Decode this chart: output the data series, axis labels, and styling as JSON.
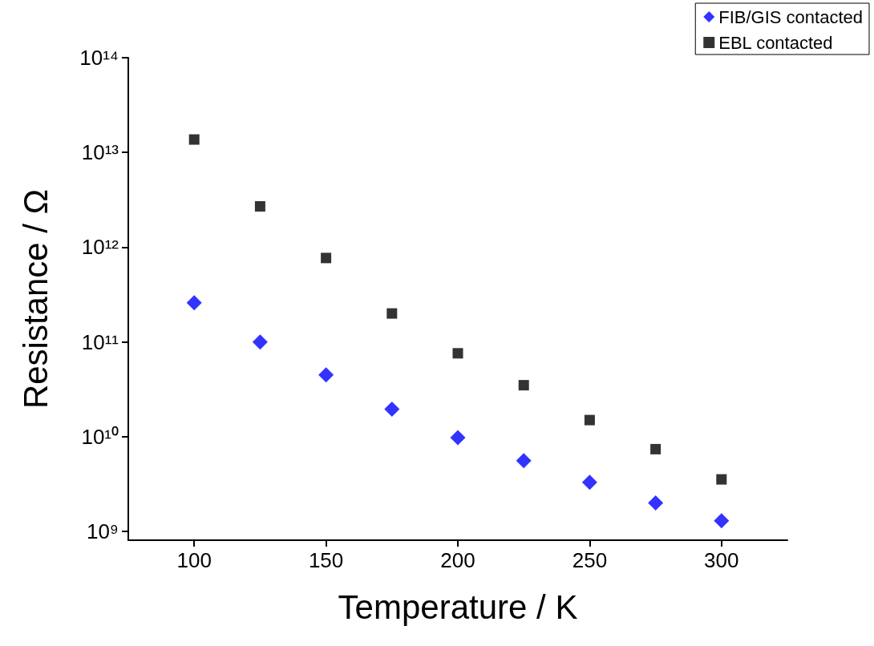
{
  "chart_data": {
    "type": "scatter",
    "xlabel": "Temperature / K",
    "ylabel": "Resistance / Ω",
    "x": [
      100,
      125,
      150,
      175,
      200,
      225,
      250,
      275,
      300
    ],
    "series": [
      {
        "name": "FIB/GIS contacted",
        "color": "#0000ff",
        "marker": "diamond",
        "values": [
          260000000000.0,
          100000000000.0,
          45000000000.0,
          19600000000.0,
          9800000000.0,
          5600000000.0,
          3300000000.0,
          2000000000.0,
          1300000000.0
        ]
      },
      {
        "name": "EBL contacted",
        "color": "#000000",
        "marker": "square",
        "values": [
          13700000000000.0,
          2700000000000.0,
          770000000000.0,
          200000000000.0,
          76000000000.0,
          35000000000.0,
          15000000000.0,
          7400000000.0,
          3550000000.0
        ]
      }
    ],
    "xlim": [
      75,
      325
    ],
    "xticks": [
      100,
      150,
      200,
      250,
      300
    ],
    "ylim": [
      810000000.0,
      100000000000000.0
    ],
    "log": "y",
    "yticks": [
      {
        "value": 1000000000.0,
        "label": "10⁹"
      },
      {
        "value": 10000000000.0,
        "label": "10¹⁰"
      },
      {
        "value": 100000000000.0,
        "label": "10¹¹"
      },
      {
        "value": 1000000000000.0,
        "label": "10¹²"
      },
      {
        "value": 10000000000000.0,
        "label": "10¹³"
      },
      {
        "value": 100000000000000.0,
        "label": "10¹⁴"
      }
    ],
    "grid": false,
    "legend": "top right"
  }
}
